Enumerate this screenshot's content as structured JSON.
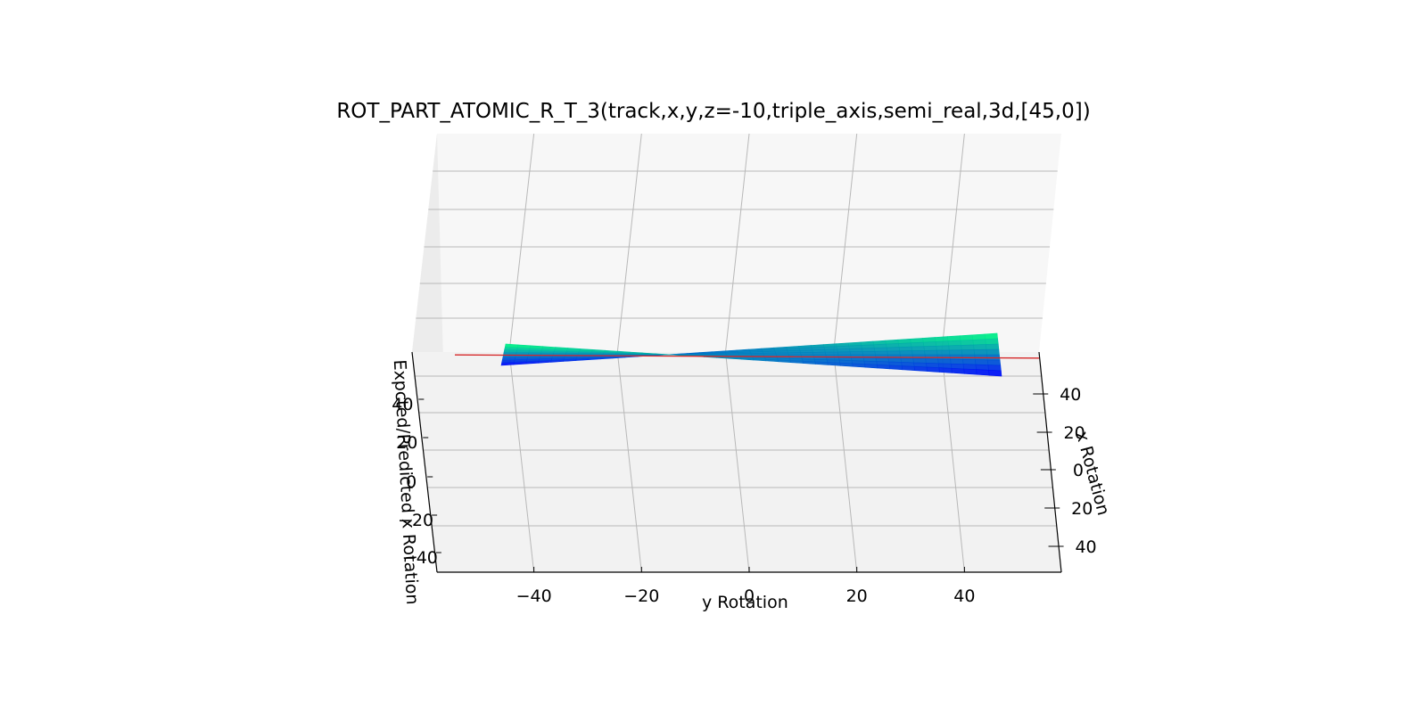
{
  "chart_data": {
    "type": "surface3d",
    "title": "ROT_PART_ATOMIC_R_T_3(track,x,y,z=-10,triple_axis,semi_real,3d,[45,0])",
    "xlabel": "y Rotation",
    "ylabel": "x Rotation",
    "zlabel": "Expcted/Predicted x Rotation",
    "y_rotation_ticks": [
      "−40",
      "−20",
      "0",
      "20",
      "40"
    ],
    "x_rotation_ticks": [
      "40",
      "20",
      "0",
      "20",
      "40"
    ],
    "z_ticks": [
      "40",
      "20",
      "0",
      "−20",
      "−40"
    ],
    "y_rotation_range": [
      -58,
      58
    ],
    "x_rotation_range": [
      -50,
      50
    ],
    "z_range": [
      -55,
      55
    ],
    "grid": true,
    "view": {
      "elevation": 45,
      "azimuth": 0
    },
    "surfaces": [
      {
        "role": "expected",
        "colormap": "winter",
        "shape": "twisted saddle z ≈ x·y/50"
      },
      {
        "role": "predicted",
        "color": "#d62728",
        "shape": "near-flat plane"
      }
    ]
  }
}
